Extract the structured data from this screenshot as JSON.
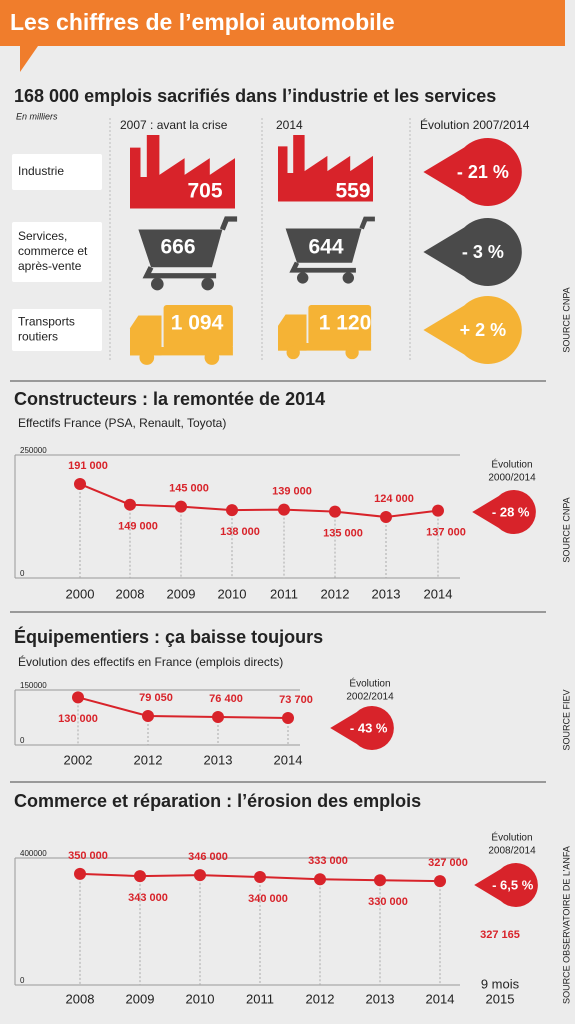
{
  "title": "Les chiffres de l’emploi automobile",
  "summary": {
    "title": "168 000 emplois sacrifiés dans l’industrie et les services",
    "unit": "En milliers",
    "columns": [
      "2007 : avant la crise",
      "2014",
      "Évolution 2007/2014"
    ],
    "rows": [
      {
        "label": [
          "Industrie"
        ],
        "values": [
          "705",
          "559"
        ],
        "change": "- 21 %",
        "color": "#d8232a"
      },
      {
        "label": [
          "Services,",
          "commerce et",
          "après-vente"
        ],
        "values": [
          "666",
          "644"
        ],
        "change": "- 3 %",
        "color": "#4a4a4a"
      },
      {
        "label": [
          "Transports",
          "routiers"
        ],
        "values": [
          "1 094",
          "1 120"
        ],
        "change": "+ 2 %",
        "color": "#f5b335"
      }
    ],
    "source": "SOURCE CNPA"
  },
  "chart_data": [
    {
      "type": "line",
      "title": "Constructeurs : la remontée de 2014",
      "subtitle": "Effectifs France (PSA, Renault, Toyota)",
      "categories": [
        "2000",
        "2008",
        "2009",
        "2010",
        "2011",
        "2012",
        "2013",
        "2014"
      ],
      "values": [
        191000,
        149000,
        145000,
        138000,
        139000,
        135000,
        124000,
        137000
      ],
      "value_labels": [
        "191 000",
        "149 000",
        "145 000",
        "138 000",
        "139 000",
        "135 000",
        "124 000",
        "137 000"
      ],
      "color": "#d8232a",
      "ylim": [
        0,
        250000
      ],
      "yticks": [
        0,
        250000
      ],
      "annotation": [
        "Évolution",
        "2000/2014"
      ],
      "change": "- 28 %",
      "source": "SOURCE CNPA"
    },
    {
      "type": "line",
      "title": "Équipementiers : ça baisse toujours",
      "subtitle": "Évolution des effectifs en France (emplois directs)",
      "categories": [
        "2002",
        "2012",
        "2013",
        "2014"
      ],
      "values": [
        130000,
        79050,
        76400,
        73700
      ],
      "value_labels": [
        "130 000",
        "79 050",
        "76 400",
        "73 700"
      ],
      "color": "#d8232a",
      "ylim": [
        0,
        150000
      ],
      "yticks": [
        0,
        150000
      ],
      "annotation": [
        "Évolution",
        "2002/2014"
      ],
      "change": "- 43 %",
      "source": "SOURCE FIEV"
    },
    {
      "type": "line",
      "title": "Commerce et réparation : l’érosion des emplois",
      "categories": [
        "2008",
        "2009",
        "2010",
        "2011",
        "2012",
        "2013",
        "2014"
      ],
      "values": [
        350000,
        343000,
        346000,
        340000,
        333000,
        330000,
        327000
      ],
      "value_labels": [
        "350 000",
        "343 000",
        "346 000",
        "340 000",
        "333 000",
        "330 000",
        "327 000"
      ],
      "color": "#d8232a",
      "ylim": [
        0,
        400000
      ],
      "yticks": [
        0,
        400000
      ],
      "annotation": [
        "Évolution",
        "2008/2014"
      ],
      "change": "- 6,5 %",
      "extra": {
        "label": "327 165",
        "category": [
          "9 mois",
          "2015"
        ]
      },
      "source": "SOURCE OBSERVATOIRE DE L’ANFA"
    }
  ]
}
